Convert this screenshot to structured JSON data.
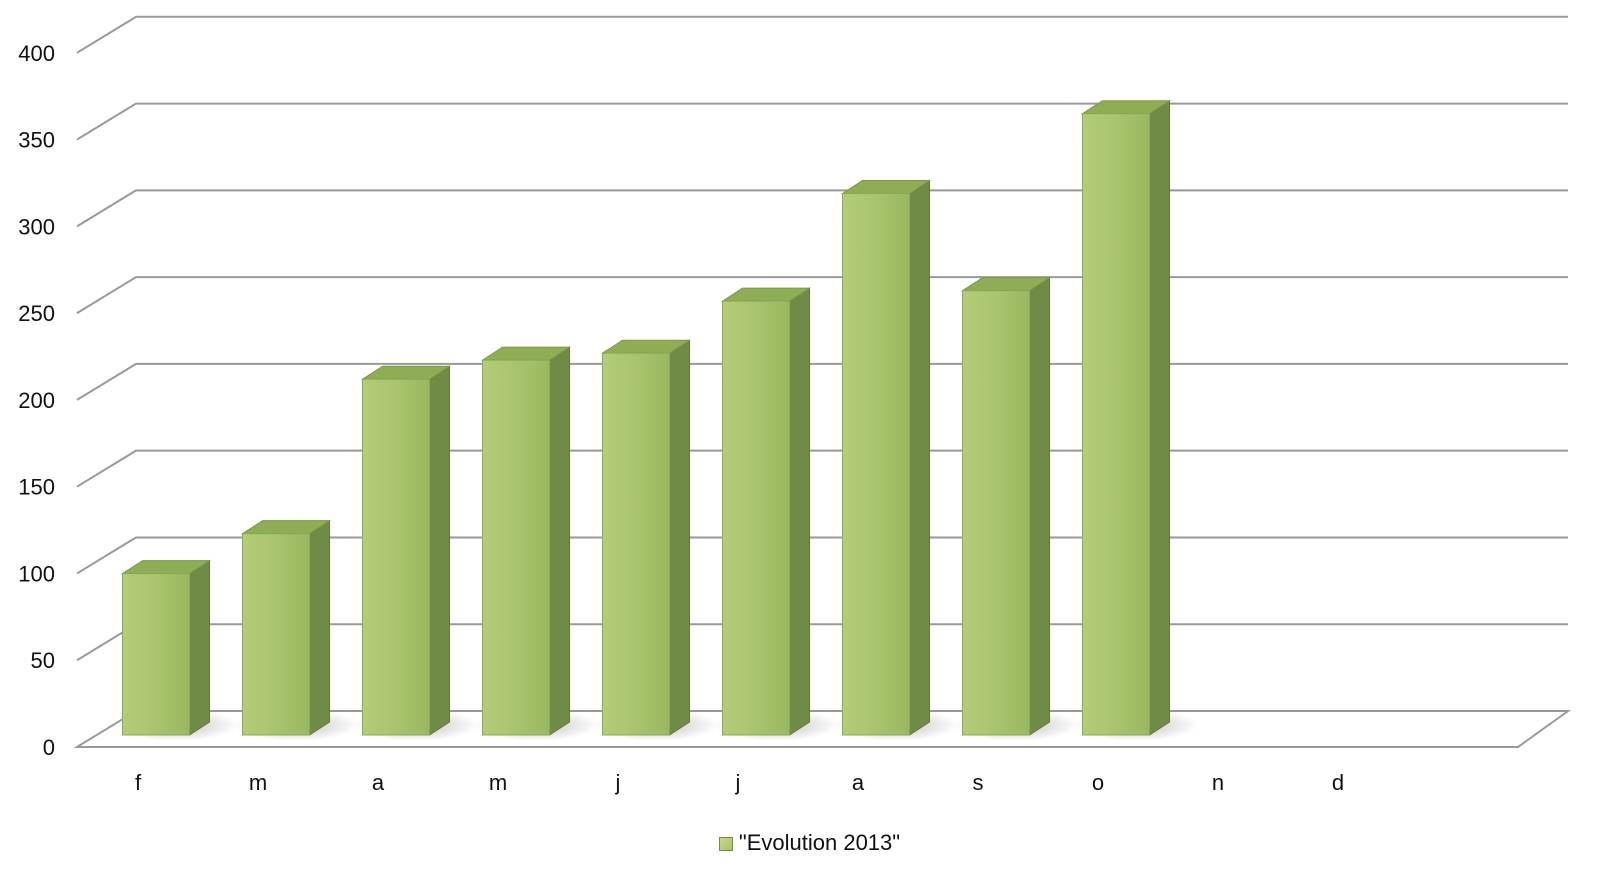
{
  "chart_data": {
    "type": "bar",
    "style": "3d-column",
    "categories": [
      "f",
      "m",
      "a",
      "m",
      "j",
      "j",
      "a",
      "s",
      "o",
      "n",
      "d"
    ],
    "series": [
      {
        "name": "\"Evolution 2013\"",
        "values": [
          93,
          116,
          205,
          216,
          220,
          250,
          312,
          256,
          358,
          null,
          null
        ],
        "color": "#a9c46c"
      }
    ],
    "yticks": [
      "0",
      "50",
      "100",
      "150",
      "200",
      "250",
      "300",
      "350",
      "400"
    ],
    "ylim": [
      0,
      400
    ],
    "grid": true,
    "legend": "bottom-center"
  }
}
